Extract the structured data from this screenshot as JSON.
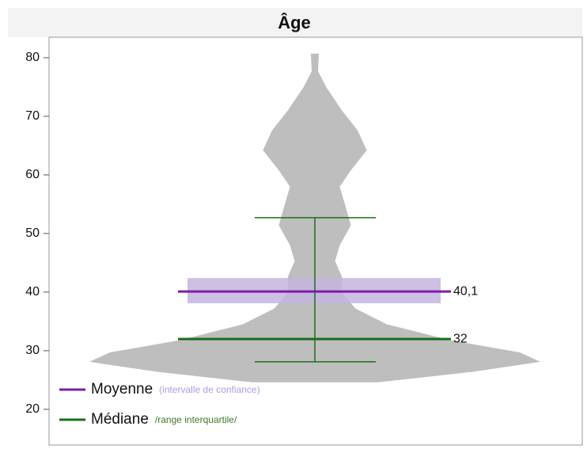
{
  "chart_data": {
    "type": "violin",
    "title": "Âge",
    "ylim": [
      13.9,
      83.5
    ],
    "yticks": [
      20,
      30,
      40,
      50,
      60,
      70,
      80
    ],
    "violin": {
      "color": "#bebebe",
      "y": [
        24.6,
        26.4,
        28.1,
        29.7,
        31.8,
        34.5,
        37.2,
        39.9,
        42.6,
        45.3,
        48,
        51.4,
        55.4,
        58,
        60.8,
        64.2,
        67.6,
        71,
        75,
        77.7,
        80.7
      ],
      "width": [
        0.28,
        0.7,
        1,
        0.91,
        0.6,
        0.32,
        0.18,
        0.12,
        0.12,
        0.09,
        0.11,
        0.16,
        0.13,
        0.11,
        0.16,
        0.23,
        0.19,
        0.12,
        0.05,
        0.014,
        0.018
      ]
    },
    "mean": {
      "name": "Moyenne",
      "note": "(intervalle de confiance)",
      "color": "#7b1fa2",
      "value": 40.1,
      "value_label": "40,1",
      "ci": [
        38.1,
        42.4
      ],
      "ci_color": "#c5b4e0",
      "note_color": "#b49ae0"
    },
    "median": {
      "name": "Médiane",
      "note": "/range interquartile/",
      "color": "#1b6e1b",
      "value": 32,
      "value_label": "32",
      "iqr": [
        28.1,
        52.7
      ],
      "note_color": "#3f7a2a"
    }
  }
}
